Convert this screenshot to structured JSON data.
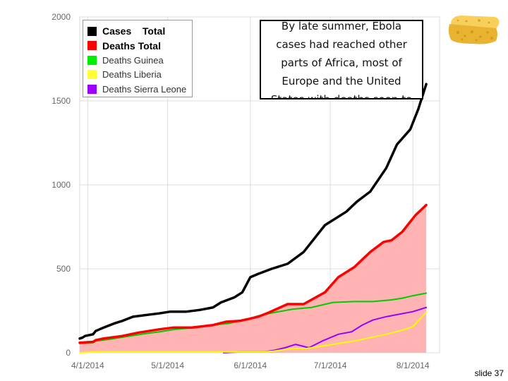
{
  "chart_data": {
    "type": "area",
    "title": "",
    "xlabel": "",
    "ylabel": "",
    "ylim": [
      0,
      2000
    ],
    "yticks": [
      0,
      500,
      1000,
      1500,
      2000
    ],
    "x_range": [
      0,
      135
    ],
    "xticks": [
      {
        "day": 3,
        "label": "4/1/2014"
      },
      {
        "day": 33,
        "label": "5/1/2014"
      },
      {
        "day": 64,
        "label": "6/1/2014"
      },
      {
        "day": 94,
        "label": "7/1/2014"
      },
      {
        "day": 125,
        "label": "8/1/2014"
      }
    ],
    "series": [
      {
        "name": "Cases Total",
        "color": "#000000",
        "filled": false,
        "points": [
          [
            0,
            85
          ],
          [
            1,
            90
          ],
          [
            2,
            100
          ],
          [
            5,
            110
          ],
          [
            6,
            130
          ],
          [
            9,
            150
          ],
          [
            13,
            175
          ],
          [
            16,
            190
          ],
          [
            20,
            215
          ],
          [
            25,
            225
          ],
          [
            30,
            235
          ],
          [
            34,
            245
          ],
          [
            40,
            245
          ],
          [
            45,
            255
          ],
          [
            50,
            270
          ],
          [
            53,
            300
          ],
          [
            58,
            330
          ],
          [
            61,
            360
          ],
          [
            64,
            450
          ],
          [
            67,
            470
          ],
          [
            72,
            500
          ],
          [
            78,
            530
          ],
          [
            84,
            600
          ],
          [
            92,
            760
          ],
          [
            100,
            840
          ],
          [
            104,
            900
          ],
          [
            109,
            960
          ],
          [
            115,
            1100
          ],
          [
            119,
            1240
          ],
          [
            124,
            1330
          ],
          [
            127,
            1450
          ],
          [
            130,
            1600
          ]
        ]
      },
      {
        "name": "Deaths Total",
        "color": "#ff0000",
        "filled": true,
        "fill": "#ffb3b3",
        "points": [
          [
            0,
            60
          ],
          [
            5,
            65
          ],
          [
            6,
            75
          ],
          [
            9,
            85
          ],
          [
            16,
            100
          ],
          [
            22,
            120
          ],
          [
            30,
            140
          ],
          [
            35,
            150
          ],
          [
            42,
            150
          ],
          [
            50,
            165
          ],
          [
            55,
            185
          ],
          [
            60,
            190
          ],
          [
            63,
            200
          ],
          [
            67,
            215
          ],
          [
            71,
            240
          ],
          [
            78,
            290
          ],
          [
            84,
            290
          ],
          [
            92,
            360
          ],
          [
            97,
            450
          ],
          [
            103,
            510
          ],
          [
            109,
            600
          ],
          [
            114,
            660
          ],
          [
            117,
            670
          ],
          [
            121,
            720
          ],
          [
            126,
            820
          ],
          [
            130,
            880
          ]
        ]
      },
      {
        "name": "Deaths Guinea",
        "color": "#00cc00",
        "filled": false,
        "points": [
          [
            0,
            55
          ],
          [
            5,
            60
          ],
          [
            6,
            70
          ],
          [
            11,
            80
          ],
          [
            17,
            95
          ],
          [
            25,
            115
          ],
          [
            30,
            125
          ],
          [
            36,
            140
          ],
          [
            44,
            150
          ],
          [
            50,
            165
          ],
          [
            56,
            175
          ],
          [
            63,
            200
          ],
          [
            67,
            220
          ],
          [
            73,
            240
          ],
          [
            80,
            260
          ],
          [
            87,
            270
          ],
          [
            95,
            300
          ],
          [
            103,
            305
          ],
          [
            110,
            305
          ],
          [
            117,
            315
          ],
          [
            121,
            325
          ],
          [
            125,
            340
          ],
          [
            130,
            355
          ]
        ]
      },
      {
        "name": "Deaths Liberia",
        "color": "#ffff00",
        "filled": false,
        "points": [
          [
            0,
            0
          ],
          [
            6,
            5
          ],
          [
            60,
            5
          ],
          [
            69,
            5
          ],
          [
            73,
            10
          ],
          [
            77,
            20
          ],
          [
            81,
            25
          ],
          [
            85,
            25
          ],
          [
            91,
            40
          ],
          [
            97,
            55
          ],
          [
            103,
            70
          ],
          [
            109,
            90
          ],
          [
            115,
            110
          ],
          [
            120,
            130
          ],
          [
            125,
            155
          ],
          [
            130,
            240
          ]
        ]
      },
      {
        "name": "Deaths Sierra Leone",
        "color": "#9900ff",
        "filled": false,
        "points": [
          [
            54,
            0
          ],
          [
            60,
            5
          ],
          [
            69,
            5
          ],
          [
            73,
            15
          ],
          [
            77,
            30
          ],
          [
            81,
            50
          ],
          [
            86,
            30
          ],
          [
            91,
            70
          ],
          [
            97,
            110
          ],
          [
            102,
            125
          ],
          [
            106,
            165
          ],
          [
            110,
            195
          ],
          [
            115,
            215
          ],
          [
            120,
            230
          ],
          [
            125,
            245
          ],
          [
            130,
            270
          ]
        ]
      }
    ],
    "legend": {
      "position": "top-left",
      "entries": [
        {
          "label": "Cases    Total",
          "color": "#000000"
        },
        {
          "label": "Deaths Total",
          "color": "#ff0000"
        },
        {
          "label": "Deaths Guinea",
          "color": "#00ee00"
        },
        {
          "label": "Deaths Liberia",
          "color": "#ffff33"
        },
        {
          "label": "Deaths Sierra Leone",
          "color": "#9900ff"
        }
      ]
    }
  },
  "annotation": {
    "text": "By late summer, Ebola cases had reached other parts of Africa, most of Europe and the United States with deaths soon to follow"
  },
  "slide": {
    "label": "slide 37"
  },
  "sponge_icon": "sponge-icon"
}
